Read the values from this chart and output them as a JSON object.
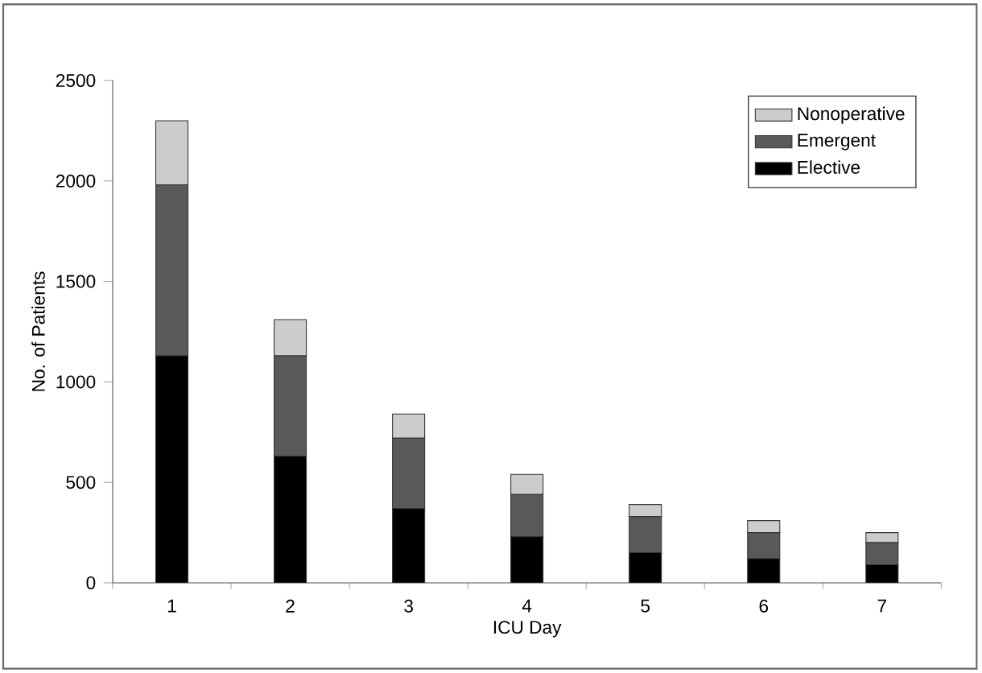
{
  "chart_data": {
    "type": "bar",
    "stacked": true,
    "xlabel": "ICU Day",
    "ylabel": "No. of Patients",
    "categories": [
      "1",
      "2",
      "3",
      "4",
      "5",
      "6",
      "7"
    ],
    "series": [
      {
        "name": "Elective",
        "color": "#000000",
        "values": [
          1130,
          630,
          370,
          230,
          150,
          120,
          90
        ]
      },
      {
        "name": "Emergent",
        "color": "#595959",
        "values": [
          850,
          500,
          350,
          210,
          180,
          130,
          110
        ]
      },
      {
        "name": "Nonoperative",
        "color": "#cccccc",
        "values": [
          320,
          180,
          120,
          100,
          60,
          60,
          50
        ]
      }
    ],
    "ylim": [
      0,
      2500
    ],
    "yticks": [
      0,
      500,
      1000,
      1500,
      2000,
      2500
    ],
    "grid": false,
    "legend": "top right"
  }
}
